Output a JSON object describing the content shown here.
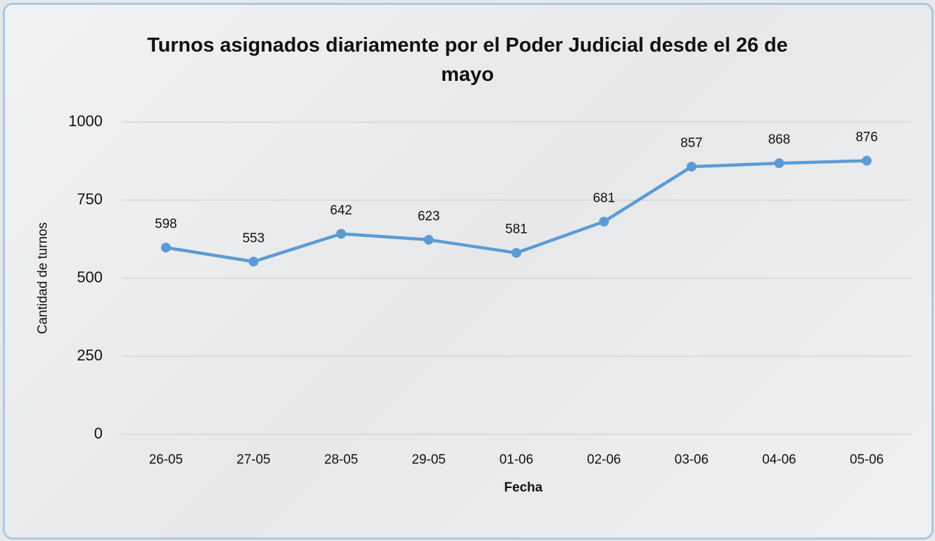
{
  "chart_data": {
    "type": "line",
    "title": "Turnos asignados diariamente por el Poder Judicial desde el 26 de mayo",
    "x_label": "Fecha",
    "y_label": "Cantidad de turnos",
    "categories": [
      "26-05",
      "27-05",
      "28-05",
      "29-05",
      "01-06",
      "02-06",
      "03-06",
      "04-06",
      "05-06"
    ],
    "values": [
      598,
      553,
      642,
      623,
      581,
      681,
      857,
      868,
      876
    ],
    "color": "#5b9bd5",
    "ylim": [
      0,
      1000
    ],
    "yticks": [
      0,
      250,
      500,
      750,
      1000
    ],
    "grid": true
  }
}
